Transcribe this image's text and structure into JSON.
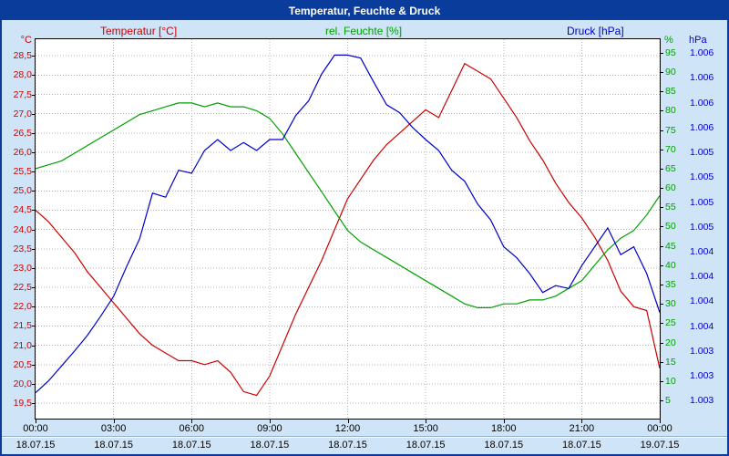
{
  "window": {
    "title": "Temperatur, Feuchte & Druck"
  },
  "legend": {
    "temperature": "Temperatur [°C]",
    "humidity": "rel. Feuchte [%]",
    "pressure": "Druck [hPa]"
  },
  "axis_units": {
    "temperature": "°C",
    "humidity": "%",
    "pressure": "hPa"
  },
  "colors": {
    "temperature": "#cc0000",
    "humidity": "#00a000",
    "pressure": "#0000cc",
    "titlebar": "#0a3c9c",
    "background": "#cfe4f6",
    "grid": "#b4b4b4"
  },
  "chart_data": {
    "type": "line",
    "title": "Temperatur, Feuchte & Druck",
    "grid": true,
    "legend_position": "top",
    "x_axis": {
      "unit": "time",
      "range": [
        0,
        24
      ],
      "tick_hours": [
        0,
        3,
        6,
        9,
        12,
        15,
        18,
        21,
        24
      ],
      "tick_labels": [
        "00:00",
        "03:00",
        "06:00",
        "09:00",
        "12:00",
        "15:00",
        "18:00",
        "21:00",
        "00:00"
      ],
      "date_labels": [
        "18.07.15",
        "18.07.15",
        "18.07.15",
        "18.07.15",
        "18.07.15",
        "18.07.15",
        "18.07.15",
        "18.07.15",
        "19.07.15"
      ]
    },
    "temp_axis": {
      "side": "left",
      "unit": "°C",
      "min": 19.1,
      "max": 28.93,
      "ticks": [
        28.5,
        28,
        27.5,
        27,
        26.5,
        26,
        25.5,
        25,
        24.5,
        24,
        23.5,
        23,
        22.5,
        22,
        21.5,
        21,
        20.5,
        20,
        19.5
      ],
      "tick_labels": [
        "28,5",
        "28,0",
        "27,5",
        "27,0",
        "26,5",
        "26,0",
        "25,5",
        "25,0",
        "24,5",
        "24,0",
        "23,5",
        "23,0",
        "22,5",
        "22,0",
        "21,5",
        "21,0",
        "20,5",
        "20,0",
        "19,5"
      ],
      "color": "#cc0000"
    },
    "humidity_axis": {
      "side": "right",
      "unit": "%",
      "min": 0.3,
      "max": 98.5,
      "ticks": [
        95,
        90,
        85,
        80,
        75,
        70,
        65,
        60,
        55,
        50,
        45,
        40,
        35,
        30,
        25,
        20,
        15,
        10,
        5
      ],
      "tick_labels": [
        "95",
        "90",
        "85",
        "80",
        "75",
        "70",
        "65",
        "60",
        "55",
        "50",
        "45",
        "40",
        "35",
        "30",
        "25",
        "20",
        "15",
        "10",
        "5"
      ],
      "color": "#00a000"
    },
    "pressure_axis": {
      "side": "far-right",
      "unit": "hPa",
      "min": 1002.57,
      "max": 1006.39,
      "ticks": [
        1006.25,
        1006.0,
        1005.75,
        1005.5,
        1005.25,
        1005.0,
        1004.75,
        1004.5,
        1004.25,
        1004.0,
        1003.75,
        1003.5,
        1003.25,
        1003.0,
        1002.75
      ],
      "tick_labels": [
        "1.006",
        "1.006",
        "1.006",
        "1.006",
        "1.005",
        "1.005",
        "1.005",
        "1.005",
        "1.004",
        "1.004",
        "1.004",
        "1.004",
        "1.003",
        "1.003",
        "1.003"
      ],
      "color": "#0000cc"
    },
    "series": [
      {
        "key": "temperature",
        "name": "Temperatur",
        "unit": "°C",
        "axis": "temp_axis",
        "color": "#cc0000",
        "x_start": 0,
        "x_step": 0.5,
        "values": [
          24.5,
          24.2,
          23.8,
          23.4,
          22.9,
          22.5,
          22.1,
          21.7,
          21.3,
          21.0,
          20.8,
          20.6,
          20.6,
          20.5,
          20.6,
          20.3,
          19.8,
          19.7,
          20.2,
          21.0,
          21.8,
          22.5,
          23.2,
          24.0,
          24.8,
          25.3,
          25.8,
          26.2,
          26.5,
          26.8,
          27.1,
          26.9,
          27.6,
          28.3,
          28.1,
          27.9,
          27.4,
          26.9,
          26.3,
          25.8,
          25.2,
          24.7,
          24.3,
          23.8,
          23.2,
          22.4,
          22.0,
          21.9,
          20.4
        ]
      },
      {
        "key": "humidity",
        "name": "rel. Feuchte",
        "unit": "%",
        "axis": "humidity_axis",
        "color": "#00a000",
        "x_start": 0,
        "x_step": 0.5,
        "values": [
          65,
          66,
          67,
          69,
          71,
          73,
          75,
          77,
          79,
          80,
          81,
          82,
          82,
          81,
          82,
          81,
          81,
          80,
          78,
          74,
          69,
          64,
          59,
          54,
          49,
          46,
          44,
          42,
          40,
          38,
          36,
          34,
          32,
          30,
          29,
          29,
          30,
          30,
          31,
          31,
          32,
          34,
          36,
          40,
          44,
          47,
          49,
          53,
          58
        ]
      },
      {
        "key": "pressure",
        "name": "Druck",
        "unit": "hPa",
        "axis": "pressure_axis",
        "color": "#0000cc",
        "x_start": 0,
        "x_step": 0.5,
        "values": [
          1002.83,
          1002.95,
          1003.1,
          1003.25,
          1003.41,
          1003.6,
          1003.8,
          1004.1,
          1004.38,
          1004.84,
          1004.8,
          1005.07,
          1005.04,
          1005.27,
          1005.38,
          1005.27,
          1005.35,
          1005.27,
          1005.38,
          1005.38,
          1005.62,
          1005.77,
          1006.04,
          1006.23,
          1006.23,
          1006.2,
          1005.96,
          1005.73,
          1005.65,
          1005.5,
          1005.38,
          1005.27,
          1005.07,
          1004.96,
          1004.73,
          1004.57,
          1004.3,
          1004.19,
          1004.03,
          1003.84,
          1003.91,
          1003.88,
          1004.11,
          1004.3,
          1004.49,
          1004.22,
          1004.3,
          1004.03,
          1003.64
        ]
      }
    ]
  }
}
